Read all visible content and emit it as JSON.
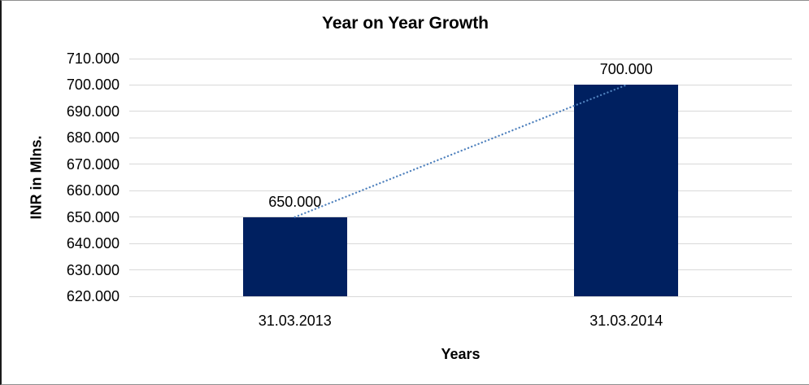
{
  "chart_data": {
    "type": "bar",
    "title": "Year on Year Growth",
    "categories": [
      "31.03.2013",
      "31.03.2014"
    ],
    "values": [
      650,
      700
    ],
    "data_labels": [
      "650.000",
      "700.000"
    ],
    "xlabel": "Years",
    "ylabel": "INR in Mlns.",
    "ylim": [
      620,
      710
    ],
    "ytick_step": 10,
    "ytick_labels": [
      "620.000",
      "630.000",
      "640.000",
      "650.000",
      "660.000",
      "670.000",
      "680.000",
      "690.000",
      "700.000",
      "710.000"
    ],
    "grid": true,
    "legend": "none",
    "trendline": {
      "style": "dotted",
      "color": "#4F81BD",
      "from_value": 650,
      "to_value": 700
    },
    "colors": {
      "bar": "#002060",
      "gridline": "#D9D9D9",
      "trendline": "#4F81BD",
      "text": "#000000",
      "frame_border": "#8F8F8F"
    }
  }
}
